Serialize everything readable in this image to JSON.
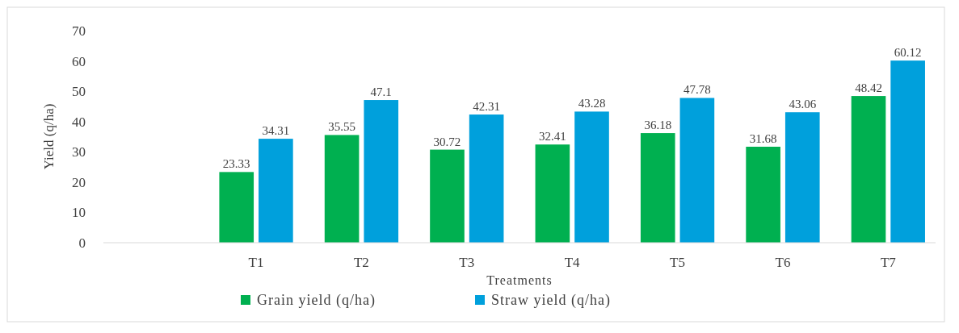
{
  "chart_data": {
    "type": "bar",
    "xlabel": "Treatments",
    "ylabel": "Yield (q/ha)",
    "categories": [
      null,
      "T1",
      "T2",
      "T3",
      "T4",
      "T5",
      "T6",
      "T7"
    ],
    "series": [
      {
        "name": "Grain yield  (q/ha)",
        "color": "#00b050",
        "values": [
          null,
          23.33,
          35.55,
          30.72,
          32.41,
          36.18,
          31.68,
          48.42
        ]
      },
      {
        "name": "Straw yield  (q/ha)",
        "color": "#00a0dc",
        "values": [
          null,
          34.31,
          47.1,
          42.31,
          43.28,
          47.78,
          43.06,
          60.12
        ]
      }
    ],
    "ylim": [
      0,
      70
    ],
    "yticks": [
      0,
      10,
      20,
      30,
      40,
      50,
      60,
      70
    ],
    "data_labels": true,
    "legend": "bottom",
    "grid": false
  }
}
